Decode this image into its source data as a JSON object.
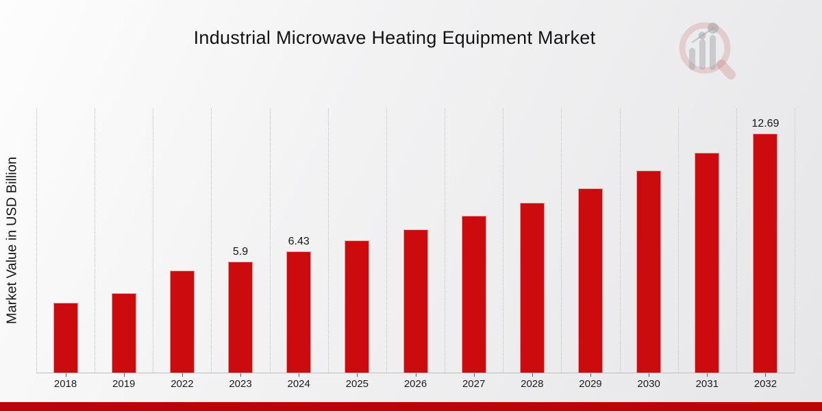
{
  "page": {
    "footer_accent_color": "#bd0305"
  },
  "watermark": {
    "icon": "magnifier-bar-chart-logo"
  },
  "chart_data": {
    "type": "bar",
    "title": "Industrial Microwave Heating Equipment Market",
    "xlabel": "",
    "ylabel": "Market Value in USD Billion",
    "categories": [
      "2018",
      "2019",
      "2022",
      "2023",
      "2024",
      "2025",
      "2026",
      "2027",
      "2028",
      "2029",
      "2030",
      "2031",
      "2032"
    ],
    "values": [
      3.71,
      4.22,
      5.42,
      5.9,
      6.43,
      7.02,
      7.6,
      8.33,
      9.02,
      9.8,
      10.73,
      11.67,
      12.69
    ],
    "point_labels": [
      "",
      "",
      "",
      "5.9",
      "6.43",
      "",
      "",
      "",
      "",
      "",
      "",
      "",
      "12.69"
    ],
    "ylim": [
      0,
      14.04
    ],
    "grid": "vertical-dotted",
    "legend": "none",
    "bar_color": "#cc0b0e",
    "axis_color": "#bdbdbf",
    "gridline_color": "#c6c6c9"
  }
}
